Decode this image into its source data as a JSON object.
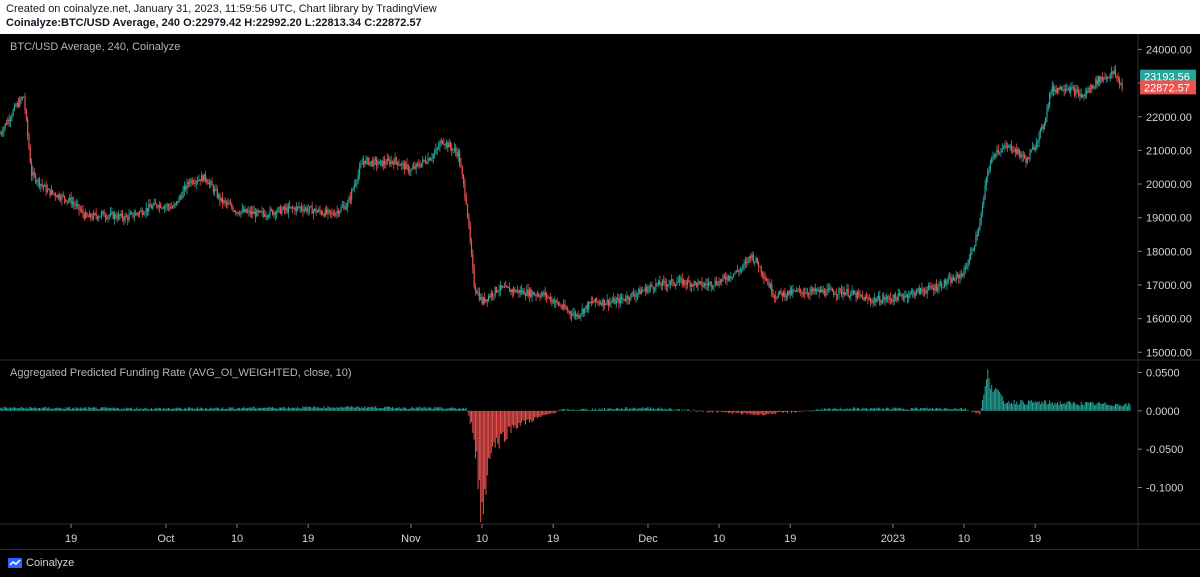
{
  "header": {
    "line1": "Created on coinalyze.net, January 31, 2023, 11:59:56 UTC, Chart library by TradingView",
    "symbol": "Coinalyze:BTC/USD Average, 240",
    "o_label": "O:",
    "o": "22979.42",
    "h_label": "H:",
    "h": "22992.20",
    "l_label": "L:",
    "l": "22813.34",
    "c_label": "C:",
    "c": "22872.57"
  },
  "footer": {
    "brand": "Coinalyze"
  },
  "chart_data": [
    {
      "type": "candlestick",
      "title": "BTC/USD Average, 240, Coinalyze",
      "ylim": [
        14800,
        24400
      ],
      "y_ticks": [
        15000,
        16000,
        17000,
        18000,
        19000,
        20000,
        21000,
        22000,
        23000,
        24000
      ],
      "y_tick_labels": [
        "15000.00",
        "16000.00",
        "17000.00",
        "18000.00",
        "19000.00",
        "20000.00",
        "21000.00",
        "22000.00",
        "23000.00",
        "24000.00"
      ],
      "price_labels": [
        {
          "value": 23193.56,
          "text": "23193.56",
          "color": "#26a69a"
        },
        {
          "value": 22872.57,
          "text": "22872.57",
          "color": "#ef5350"
        }
      ],
      "up_color": "#26a69a",
      "down_color": "#ef5350",
      "close_path": [
        [
          "2022-09-10",
          21500
        ],
        [
          "2022-09-12",
          22300
        ],
        [
          "2022-09-13",
          22600
        ],
        [
          "2022-09-14",
          20300
        ],
        [
          "2022-09-16",
          19800
        ],
        [
          "2022-09-19",
          19500
        ],
        [
          "2022-09-21",
          19000
        ],
        [
          "2022-09-23",
          19100
        ],
        [
          "2022-09-26",
          19000
        ],
        [
          "2022-09-28",
          19200
        ],
        [
          "2022-09-30",
          19400
        ],
        [
          "2022-10-02",
          19300
        ],
        [
          "2022-10-04",
          20100
        ],
        [
          "2022-10-06",
          20200
        ],
        [
          "2022-10-08",
          19500
        ],
        [
          "2022-10-10",
          19200
        ],
        [
          "2022-10-13",
          19100
        ],
        [
          "2022-10-15",
          19200
        ],
        [
          "2022-10-18",
          19300
        ],
        [
          "2022-10-20",
          19200
        ],
        [
          "2022-10-22",
          19100
        ],
        [
          "2022-10-24",
          19400
        ],
        [
          "2022-10-25",
          20100
        ],
        [
          "2022-10-26",
          20700
        ],
        [
          "2022-10-28",
          20600
        ],
        [
          "2022-10-30",
          20700
        ],
        [
          "2022-11-01",
          20400
        ],
        [
          "2022-11-04",
          20900
        ],
        [
          "2022-11-05",
          21300
        ],
        [
          "2022-11-07",
          20900
        ],
        [
          "2022-11-08",
          19500
        ],
        [
          "2022-11-09",
          17000
        ],
        [
          "2022-11-10",
          16500
        ],
        [
          "2022-11-12",
          16900
        ],
        [
          "2022-11-15",
          16800
        ],
        [
          "2022-11-18",
          16700
        ],
        [
          "2022-11-21",
          16200
        ],
        [
          "2022-11-22",
          16100
        ],
        [
          "2022-11-24",
          16500
        ],
        [
          "2022-11-27",
          16500
        ],
        [
          "2022-11-30",
          16800
        ],
        [
          "2022-12-02",
          17000
        ],
        [
          "2022-12-05",
          17100
        ],
        [
          "2022-12-08",
          17000
        ],
        [
          "2022-12-10",
          17100
        ],
        [
          "2022-12-13",
          17500
        ],
        [
          "2022-12-14",
          17900
        ],
        [
          "2022-12-15",
          17600
        ],
        [
          "2022-12-17",
          16700
        ],
        [
          "2022-12-20",
          16800
        ],
        [
          "2022-12-23",
          16800
        ],
        [
          "2022-12-26",
          16800
        ],
        [
          "2022-12-29",
          16550
        ],
        [
          "2023-01-01",
          16600
        ],
        [
          "2023-01-04",
          16800
        ],
        [
          "2023-01-06",
          16900
        ],
        [
          "2023-01-09",
          17200
        ],
        [
          "2023-01-10",
          17400
        ],
        [
          "2023-01-11",
          18000
        ],
        [
          "2023-01-12",
          18800
        ],
        [
          "2023-01-13",
          20400
        ],
        [
          "2023-01-14",
          21000
        ],
        [
          "2023-01-16",
          21100
        ],
        [
          "2023-01-18",
          20700
        ],
        [
          "2023-01-20",
          21700
        ],
        [
          "2023-01-21",
          22800
        ],
        [
          "2023-01-23",
          22900
        ],
        [
          "2023-01-25",
          22600
        ],
        [
          "2023-01-27",
          23100
        ],
        [
          "2023-01-29",
          23300
        ],
        [
          "2023-01-30",
          22900
        ]
      ]
    },
    {
      "type": "bar",
      "title": "Aggregated Predicted Funding Rate (AVG_OI_WEIGHTED, close, 10)",
      "ylim": [
        -0.145,
        0.065
      ],
      "y_ticks": [
        -0.1,
        -0.05,
        0,
        0.05
      ],
      "y_tick_labels": [
        "-0.1000",
        "-0.0500",
        "0.0000",
        "0.0500"
      ],
      "positive_color": "#26a69a",
      "negative_color": "#ef5350",
      "series_path": [
        [
          "2022-09-10",
          0.004
        ],
        [
          "2022-10-01",
          0.003
        ],
        [
          "2022-10-25",
          0.005
        ],
        [
          "2022-11-08",
          0.003
        ],
        [
          "2022-11-09",
          -0.03
        ],
        [
          "2022-11-10",
          -0.14
        ],
        [
          "2022-11-11",
          -0.05
        ],
        [
          "2022-11-14",
          -0.02
        ],
        [
          "2022-11-20",
          0.001
        ],
        [
          "2022-12-01",
          0.004
        ],
        [
          "2022-12-15",
          -0.005
        ],
        [
          "2022-12-25",
          0.003
        ],
        [
          "2023-01-10",
          0.003
        ],
        [
          "2023-01-12",
          -0.004
        ],
        [
          "2023-01-13",
          0.045
        ],
        [
          "2023-01-15",
          0.012
        ],
        [
          "2023-01-31",
          0.008
        ]
      ]
    }
  ],
  "x_axis": {
    "start": "2022-09-10",
    "end": "2023-01-31",
    "ticks": [
      {
        "date": "2022-09-19",
        "label": "19"
      },
      {
        "date": "2022-10-01",
        "label": "Oct"
      },
      {
        "date": "2022-10-10",
        "label": "10"
      },
      {
        "date": "2022-10-19",
        "label": "19"
      },
      {
        "date": "2022-11-01",
        "label": "Nov"
      },
      {
        "date": "2022-11-10",
        "label": "10"
      },
      {
        "date": "2022-11-19",
        "label": "19"
      },
      {
        "date": "2022-12-01",
        "label": "Dec"
      },
      {
        "date": "2022-12-10",
        "label": "10"
      },
      {
        "date": "2022-12-19",
        "label": "19"
      },
      {
        "date": "2023-01-01",
        "label": "2023"
      },
      {
        "date": "2023-01-10",
        "label": "10"
      },
      {
        "date": "2023-01-19",
        "label": "19"
      }
    ]
  }
}
